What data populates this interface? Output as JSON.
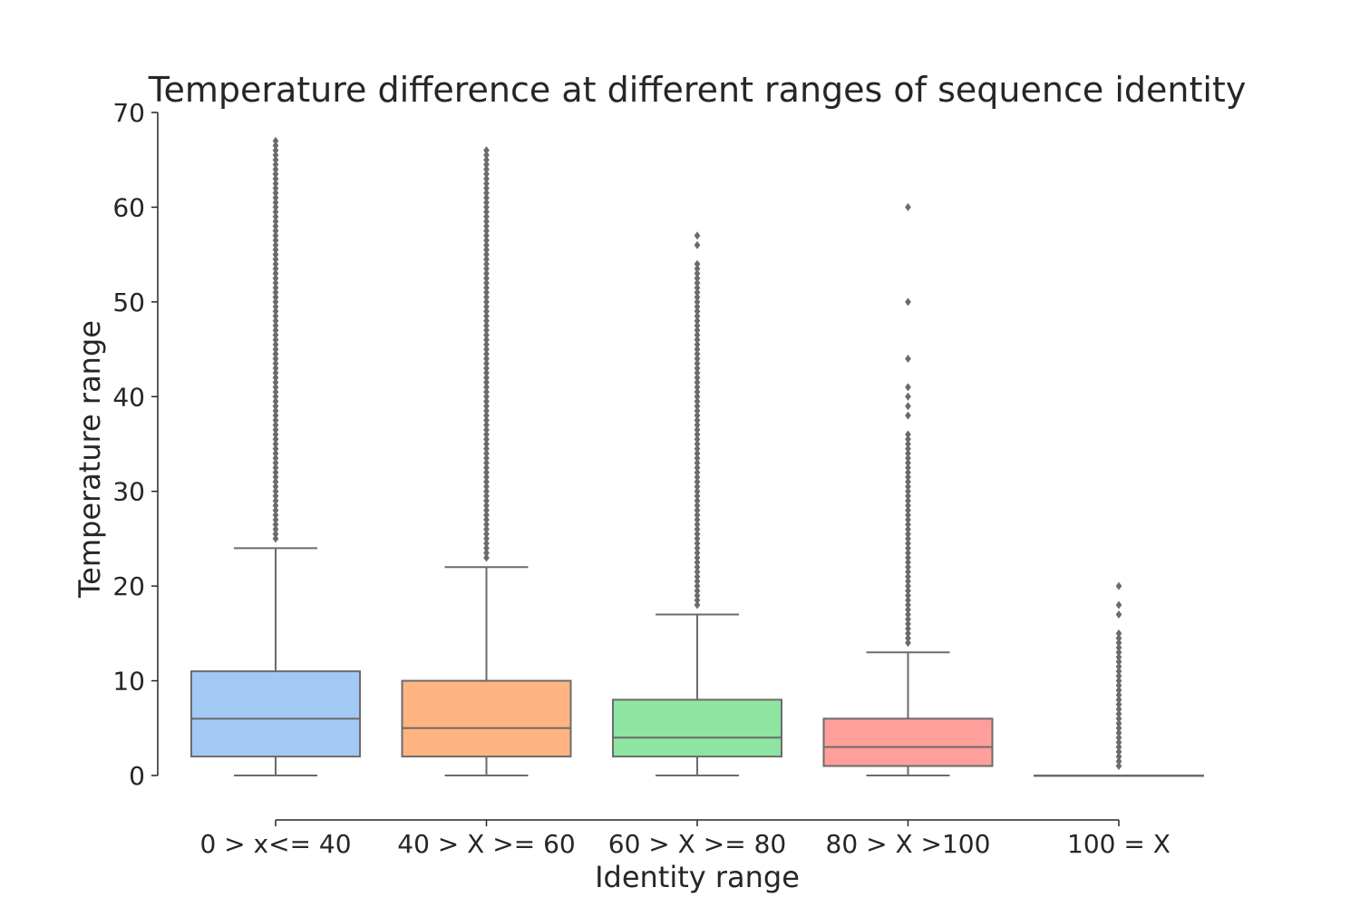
{
  "chart_data": {
    "type": "box",
    "title": "Temperature difference at different ranges of sequence identity",
    "xlabel": "Identity range",
    "ylabel": "Temperature range",
    "ylim": [
      0,
      70
    ],
    "yticks": [
      0,
      10,
      20,
      30,
      40,
      50,
      60,
      70
    ],
    "grid": false,
    "legend": "none",
    "categories": [
      "0 > x<= 40",
      "40 > X >= 60",
      "60 > X >= 80",
      "80 > X >100",
      "100 = X"
    ],
    "boxes": [
      {
        "category": "0 > x<= 40",
        "color": "#a1c9f4",
        "whisker_low": 0,
        "q1": 2,
        "median": 6,
        "q3": 11,
        "whisker_high": 24,
        "outlier_min": 25,
        "outlier_max": 67,
        "outlier_step": 0.5
      },
      {
        "category": "40 > X >= 60",
        "color": "#ffb482",
        "whisker_low": 0,
        "q1": 2,
        "median": 5,
        "q3": 10,
        "whisker_high": 22,
        "outlier_min": 23,
        "outlier_max": 66,
        "outlier_step": 0.5
      },
      {
        "category": "60 > X >= 80",
        "color": "#8de5a1",
        "whisker_low": 0,
        "q1": 2,
        "median": 4,
        "q3": 8,
        "whisker_high": 17,
        "outlier_min": 18,
        "outlier_max": 54,
        "outlier_step": 0.5,
        "outliers_extra": [
          56,
          57
        ]
      },
      {
        "category": "80 > X >100",
        "color": "#ff9f9b",
        "whisker_low": 0,
        "q1": 1,
        "median": 3,
        "q3": 6,
        "whisker_high": 13,
        "outlier_min": 14,
        "outlier_max": 36,
        "outlier_step": 0.5,
        "outliers_extra": [
          38,
          39,
          40,
          41,
          44,
          50,
          60
        ]
      },
      {
        "category": "100 = X",
        "color": "#d0bbff",
        "whisker_low": 0,
        "q1": 0,
        "median": 0,
        "q3": 0,
        "whisker_high": 0,
        "outlier_min": 1,
        "outlier_max": 15,
        "outlier_step": 0.5,
        "outliers_extra": [
          17,
          18,
          20
        ]
      }
    ]
  }
}
